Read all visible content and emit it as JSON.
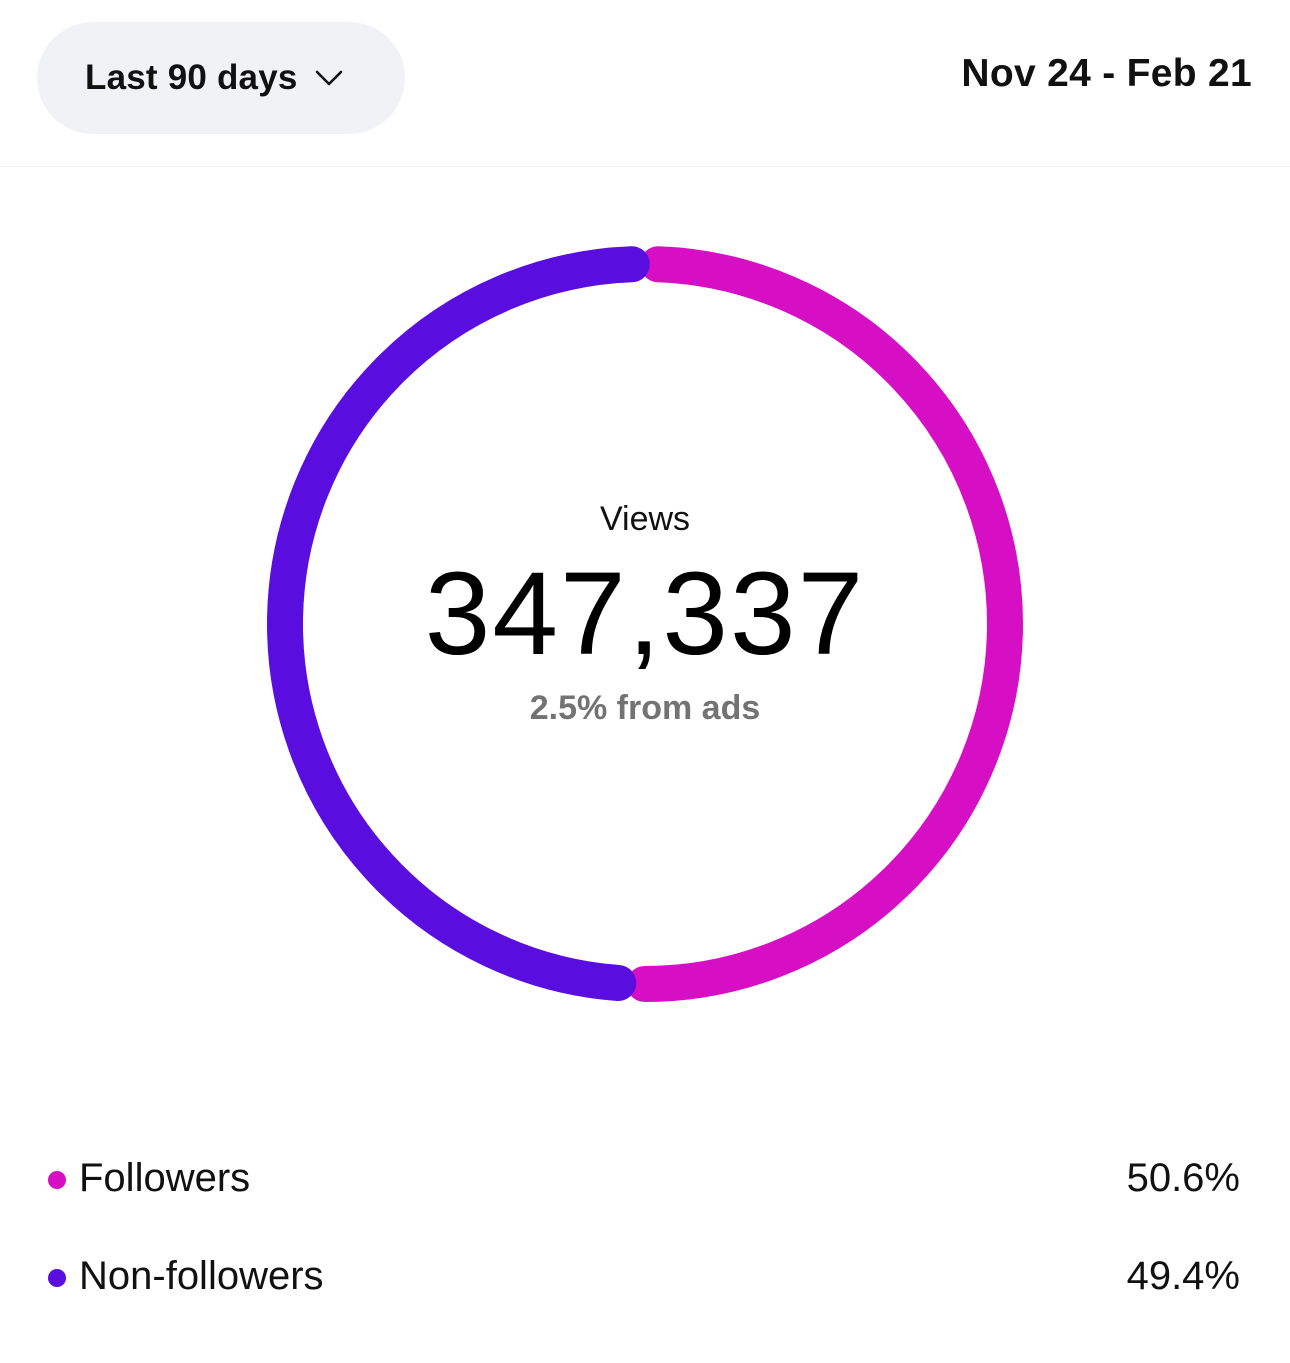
{
  "header": {
    "range_label": "Last 90 days",
    "range_icon": "chevron-down-icon",
    "date_range": "Nov 24 - Feb 21"
  },
  "summary": {
    "metric_label": "Views",
    "metric_value": "347,337",
    "ads_note": "2.5% from ads"
  },
  "chart_data": {
    "type": "pie",
    "donut": true,
    "categories": [
      "Followers",
      "Non-followers"
    ],
    "values": [
      50.6,
      49.4
    ],
    "colors": [
      "#d60fc4",
      "#5a0ddf"
    ]
  },
  "legend": [
    {
      "label": "Followers",
      "value": "50.6%",
      "color": "#d60fc4"
    },
    {
      "label": "Non-followers",
      "value": "49.4%",
      "color": "#5a0ddf"
    }
  ]
}
